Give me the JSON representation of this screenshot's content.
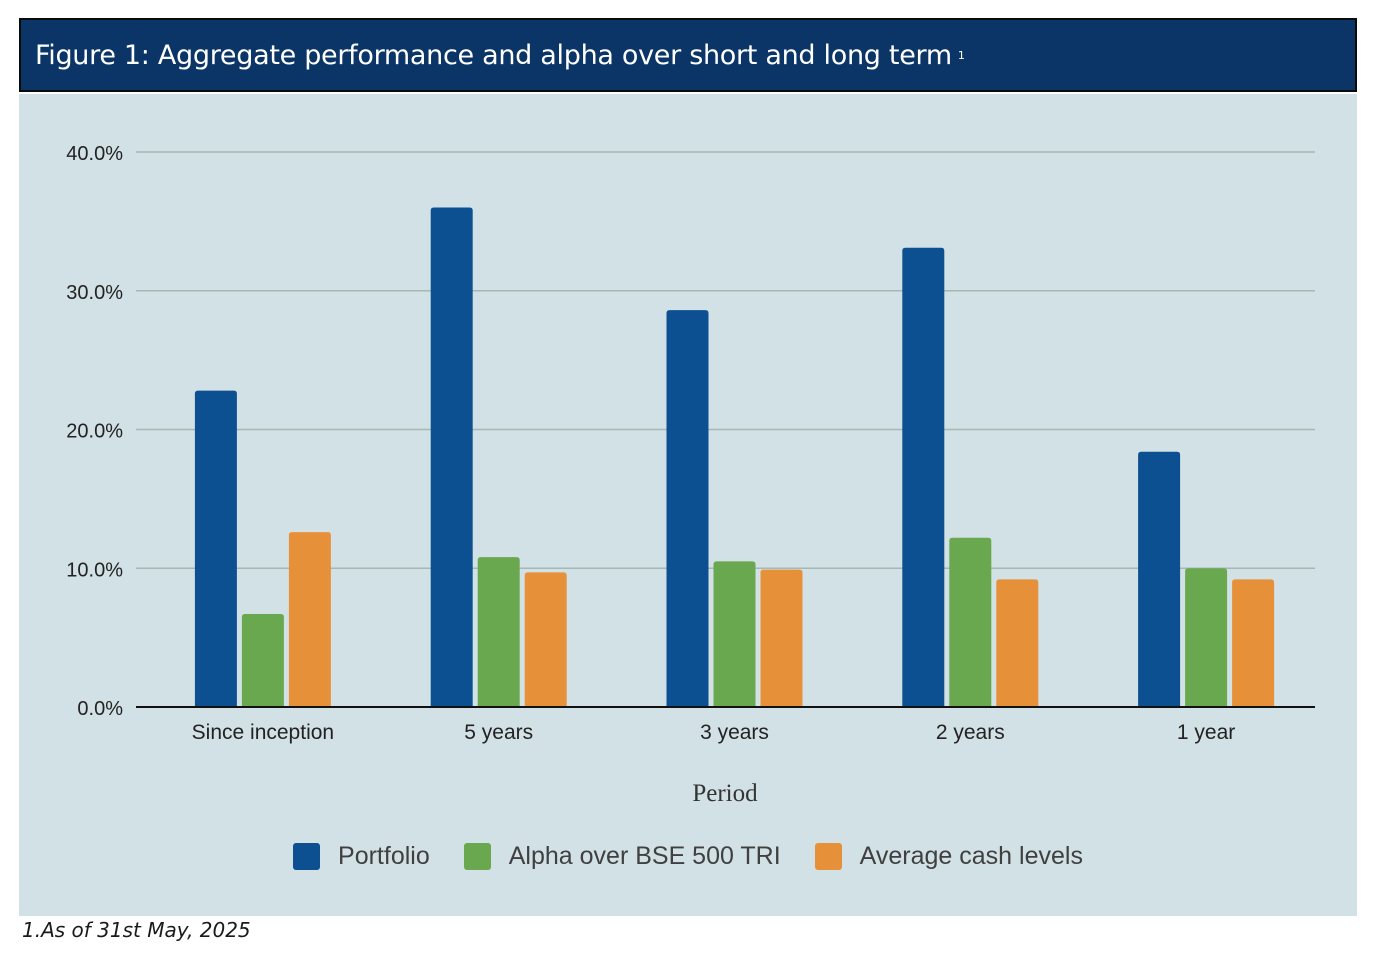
{
  "header": {
    "title": "Figure 1:  Aggregate performance and alpha over short and long term",
    "title_sup": "1"
  },
  "footnote": "1.As of 31st May, 2025",
  "colors": {
    "header_bg": "#0b3566",
    "plot_bg": "#d2e1e5",
    "portfolio": "#0d5092",
    "alpha": "#6aa84f",
    "cash": "#e6913a",
    "gridline": "#a5b8b3"
  },
  "chart_data": {
    "type": "bar",
    "title": "",
    "xlabel": "Period",
    "ylabel": "",
    "ylim": [
      0,
      40
    ],
    "y_ticks": [
      0,
      10,
      20,
      30,
      40
    ],
    "y_tick_labels": [
      "0.0%",
      "10.0%",
      "20.0%",
      "30.0%",
      "40.0%"
    ],
    "grid": true,
    "legend_position": "bottom",
    "categories": [
      "Since inception",
      "5 years",
      "3 years",
      "2 years",
      "1 year"
    ],
    "series": [
      {
        "name": "Portfolio",
        "color": "#0d5092",
        "values": [
          22.8,
          36.0,
          28.6,
          33.1,
          18.4
        ]
      },
      {
        "name": "Alpha over BSE 500 TRI",
        "color": "#6aa84f",
        "values": [
          6.7,
          10.8,
          10.5,
          12.2,
          10.0
        ]
      },
      {
        "name": "Average cash levels",
        "color": "#e6913a",
        "values": [
          12.6,
          9.7,
          9.9,
          9.2,
          9.2
        ]
      }
    ]
  }
}
